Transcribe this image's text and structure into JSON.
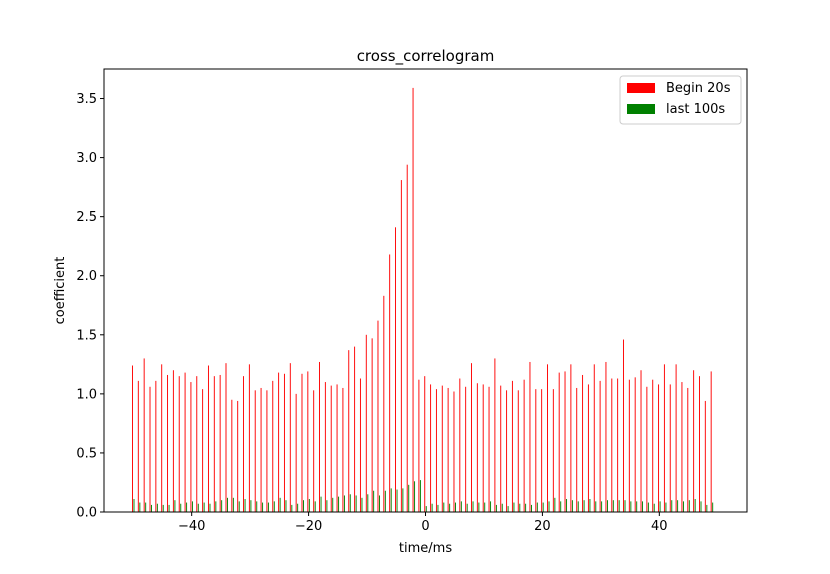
{
  "chart_data": {
    "type": "bar",
    "title": "cross_correlogram",
    "xlabel": "time/ms",
    "ylabel": "coefficient",
    "xlim": [
      -55,
      55
    ],
    "ylim": [
      0,
      3.75
    ],
    "xticks": [
      -40,
      -20,
      0,
      20,
      40
    ],
    "yticks": [
      0.0,
      0.5,
      1.0,
      1.5,
      2.0,
      2.5,
      3.0,
      3.5
    ],
    "ytick_labels": [
      "0.0",
      "0.5",
      "1.0",
      "1.5",
      "2.0",
      "2.5",
      "3.0",
      "3.5"
    ],
    "grid": false,
    "legend_position": "top-right",
    "x": [
      -50,
      -49,
      -48,
      -47,
      -46,
      -45,
      -44,
      -43,
      -42,
      -41,
      -40,
      -39,
      -38,
      -37,
      -36,
      -35,
      -34,
      -33,
      -32,
      -31,
      -30,
      -29,
      -28,
      -27,
      -26,
      -25,
      -24,
      -23,
      -22,
      -21,
      -20,
      -19,
      -18,
      -17,
      -16,
      -15,
      -14,
      -13,
      -12,
      -11,
      -10,
      -9,
      -8,
      -7,
      -6,
      -5,
      -4,
      -3,
      -2,
      -1,
      0,
      1,
      2,
      3,
      4,
      5,
      6,
      7,
      8,
      9,
      10,
      11,
      12,
      13,
      14,
      15,
      16,
      17,
      18,
      19,
      20,
      21,
      22,
      23,
      24,
      25,
      26,
      27,
      28,
      29,
      30,
      31,
      32,
      33,
      34,
      35,
      36,
      37,
      38,
      39,
      40,
      41,
      42,
      43,
      44,
      45,
      46,
      47,
      48,
      49
    ],
    "series": [
      {
        "name": "Begin 20s",
        "color": "#ff0000",
        "values": [
          1.24,
          1.11,
          1.3,
          1.06,
          1.11,
          1.25,
          1.16,
          1.2,
          1.15,
          1.18,
          1.1,
          1.15,
          1.04,
          1.24,
          1.15,
          1.16,
          1.26,
          0.95,
          0.94,
          1.15,
          1.25,
          1.03,
          1.05,
          1.03,
          1.11,
          1.18,
          1.17,
          1.26,
          1.0,
          1.17,
          1.19,
          1.03,
          1.27,
          1.1,
          1.07,
          1.08,
          1.05,
          1.37,
          1.4,
          1.13,
          1.5,
          1.47,
          1.62,
          1.83,
          2.18,
          2.41,
          2.81,
          2.94,
          3.59,
          1.12,
          1.15,
          1.08,
          1.04,
          1.07,
          1.05,
          1.02,
          1.13,
          1.06,
          1.26,
          1.09,
          1.08,
          1.06,
          1.3,
          1.07,
          1.03,
          1.11,
          1.03,
          1.12,
          1.27,
          1.04,
          1.04,
          1.25,
          1.04,
          1.18,
          1.19,
          1.25,
          1.05,
          1.16,
          1.08,
          1.25,
          1.11,
          1.27,
          1.13,
          1.13,
          1.46,
          1.12,
          1.14,
          1.2,
          1.06,
          1.12,
          1.08,
          1.25,
          1.08,
          1.25,
          1.1,
          1.05,
          1.2,
          1.15,
          0.94,
          1.19
        ]
      },
      {
        "name": "last 100s",
        "color": "#008000",
        "values": [
          0.11,
          0.08,
          0.08,
          0.06,
          0.07,
          0.06,
          0.06,
          0.1,
          0.07,
          0.08,
          0.09,
          0.07,
          0.08,
          0.07,
          0.09,
          0.1,
          0.12,
          0.12,
          0.09,
          0.11,
          0.1,
          0.09,
          0.08,
          0.08,
          0.09,
          0.12,
          0.1,
          0.06,
          0.07,
          0.1,
          0.11,
          0.09,
          0.13,
          0.1,
          0.12,
          0.13,
          0.14,
          0.15,
          0.14,
          0.12,
          0.15,
          0.18,
          0.14,
          0.18,
          0.2,
          0.19,
          0.2,
          0.23,
          0.26,
          0.27,
          0.05,
          0.07,
          0.06,
          0.08,
          0.07,
          0.08,
          0.09,
          0.07,
          0.09,
          0.08,
          0.08,
          0.09,
          0.06,
          0.07,
          0.05,
          0.08,
          0.07,
          0.07,
          0.06,
          0.08,
          0.08,
          0.09,
          0.12,
          0.09,
          0.11,
          0.1,
          0.09,
          0.1,
          0.11,
          0.09,
          0.09,
          0.1,
          0.1,
          0.1,
          0.1,
          0.09,
          0.09,
          0.09,
          0.08,
          0.07,
          0.09,
          0.08,
          0.1,
          0.1,
          0.09,
          0.1,
          0.11,
          0.09,
          0.06,
          0.08
        ]
      }
    ]
  }
}
